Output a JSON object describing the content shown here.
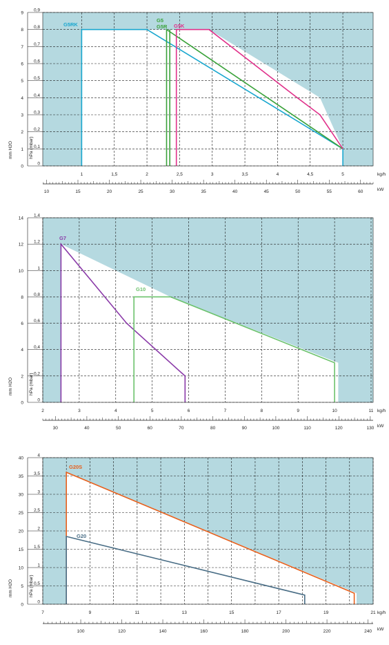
{
  "colors": {
    "background_blue": "#b5d9e0",
    "envelope_fill": "#ffffff",
    "grid": "#1a1a1a",
    "axis_text": "#222222"
  },
  "chart_data": [
    {
      "type": "line",
      "id": "chart1",
      "xlabel": "kg/h",
      "x2label": "kW",
      "ylabel_left": "mm H2O",
      "ylabel_right": "hPa (mbar)",
      "xlim": [
        0.7,
        5.2
      ],
      "ylim": [
        0,
        9
      ],
      "x_ticks": [
        1,
        1.5,
        2,
        2.5,
        3,
        3.5,
        4,
        4.5,
        5
      ],
      "x_tick_labels": [
        "1",
        "1,5",
        "2",
        "2,5",
        "3",
        "3,5",
        "4",
        "4,5",
        "5"
      ],
      "y_ticks": [
        0,
        1,
        2,
        3,
        4,
        5,
        6,
        7,
        8,
        9
      ],
      "y_left_labels": [
        "0",
        "1",
        "2",
        "3",
        "4",
        "5",
        "6",
        "7",
        "8",
        "9"
      ],
      "y_right_labels": [
        "0",
        "0,1",
        "0,2",
        "0,3",
        "0,4",
        "0,5",
        "0,6",
        "0,7",
        "0,8",
        "0,9"
      ],
      "kw_ticks": [
        10,
        15,
        20,
        25,
        30,
        35,
        40,
        45,
        50,
        55,
        60
      ],
      "kw_labels": [
        "10",
        "15",
        "20",
        "25",
        "30",
        "35",
        "40",
        "45",
        "50",
        "55",
        "60"
      ],
      "kw_range": [
        9.4,
        62
      ],
      "envelope": [
        [
          1,
          0
        ],
        [
          1,
          8
        ],
        [
          2.95,
          8
        ],
        [
          4.65,
          4
        ],
        [
          5,
          1
        ],
        [
          5,
          0
        ]
      ],
      "series": [
        {
          "name": "G5RK",
          "color": "#19a7cf",
          "points": [
            [
              1,
              0
            ],
            [
              1,
              8
            ],
            [
              2,
              8
            ],
            [
              5,
              1
            ],
            [
              5,
              0
            ]
          ]
        },
        {
          "name": "G5",
          "color": "#3aa23a",
          "points": [
            [
              2.3,
              0
            ],
            [
              2.3,
              8
            ],
            [
              5,
              1
            ]
          ]
        },
        {
          "name": "G5R",
          "color": "#3aa23a",
          "points": [
            [
              2.35,
              0
            ],
            [
              2.35,
              8
            ]
          ]
        },
        {
          "name": "G5K",
          "color": "#e0308a",
          "points": [
            [
              2.45,
              0
            ],
            [
              2.45,
              8
            ],
            [
              2.95,
              8
            ],
            [
              4.3,
              4
            ],
            [
              4.65,
              3
            ],
            [
              5,
              1
            ]
          ]
        }
      ]
    },
    {
      "type": "line",
      "id": "chart2",
      "xlabel": "kg/h",
      "x2label": "kW",
      "ylabel_left": "mm H2O",
      "ylabel_right": "hPa (mbar)",
      "xlim": [
        2,
        11
      ],
      "ylim": [
        0,
        14
      ],
      "x_ticks": [
        2,
        3,
        4,
        5,
        6,
        7,
        8,
        9,
        10,
        11
      ],
      "x_tick_labels": [
        "2",
        "3",
        "4",
        "5",
        "6",
        "7",
        "8",
        "9",
        "10",
        "11"
      ],
      "y_ticks": [
        0,
        2,
        4,
        6,
        8,
        10,
        12,
        14
      ],
      "y_left_labels": [
        "0",
        "2",
        "4",
        "6",
        "8",
        "10",
        "12",
        "14"
      ],
      "y_right_labels": [
        "0",
        "0,2",
        "0,4",
        "0,6",
        "0,8",
        "1",
        "1,2",
        "1,4"
      ],
      "kw_ticks": [
        30,
        40,
        50,
        60,
        70,
        80,
        90,
        100,
        110,
        120,
        130
      ],
      "kw_labels": [
        "30",
        "40",
        "50",
        "60",
        "70",
        "80",
        "90",
        "100",
        "110",
        "120",
        "130"
      ],
      "kw_range": [
        26,
        130.9
      ],
      "envelope": [
        [
          2.5,
          0
        ],
        [
          2.5,
          12
        ],
        [
          5.5,
          8
        ],
        [
          10.1,
          3
        ],
        [
          10.1,
          0
        ]
      ],
      "series": [
        {
          "name": "G7",
          "color": "#8a3aa8",
          "points": [
            [
              2.5,
              0
            ],
            [
              2.5,
              12
            ],
            [
              4.3,
              6
            ],
            [
              5.9,
              2
            ],
            [
              5.9,
              0
            ]
          ]
        },
        {
          "name": "G10",
          "color": "#6cc26c",
          "points": [
            [
              4.5,
              0
            ],
            [
              4.5,
              8
            ],
            [
              5.5,
              8
            ],
            [
              10,
              3
            ],
            [
              10,
              0
            ]
          ]
        }
      ]
    },
    {
      "type": "line",
      "id": "chart3",
      "xlabel": "kg/h",
      "x2label": "kW",
      "ylabel_left": "mm H2O",
      "ylabel_right": "hPa (mbar)",
      "xlim": [
        7,
        21
      ],
      "ylim": [
        0,
        40
      ],
      "x_ticks": [
        7,
        9,
        11,
        13,
        15,
        17,
        19,
        21
      ],
      "x_tick_labels": [
        "7",
        "9",
        "11",
        "13",
        "15",
        "17",
        "19",
        "21"
      ],
      "x_grid": [
        7,
        8,
        9,
        10,
        11,
        12,
        13,
        14,
        15,
        16,
        17,
        18,
        19,
        20,
        21
      ],
      "y_ticks": [
        0,
        5,
        10,
        15,
        20,
        25,
        30,
        35,
        40
      ],
      "y_left_labels": [
        "0",
        "5",
        "10",
        "15",
        "20",
        "25",
        "30",
        "35",
        "40"
      ],
      "y_right_labels": [
        "0",
        "0,5",
        "1",
        "1,5",
        "2",
        "2,5",
        "3",
        "3,5",
        "4"
      ],
      "kw_ticks": [
        100,
        120,
        140,
        160,
        180,
        200,
        220,
        240
      ],
      "kw_labels": [
        "100",
        "120",
        "140",
        "160",
        "180",
        "200",
        "220",
        "240"
      ],
      "kw_range": [
        81.5,
        242.5
      ],
      "envelope": [
        [
          8,
          0
        ],
        [
          8,
          36
        ],
        [
          20.3,
          3
        ],
        [
          20.3,
          0
        ]
      ],
      "series": [
        {
          "name": "G20S",
          "color": "#e8601c",
          "points": [
            [
              8,
              0
            ],
            [
              8,
              36
            ],
            [
              20.2,
              3
            ],
            [
              20.2,
              0
            ]
          ]
        },
        {
          "name": "G20",
          "color": "#4a6e86",
          "points": [
            [
              8,
              0
            ],
            [
              8,
              18.5
            ],
            [
              18.1,
              2.5
            ],
            [
              18.1,
              0
            ]
          ]
        }
      ]
    }
  ]
}
